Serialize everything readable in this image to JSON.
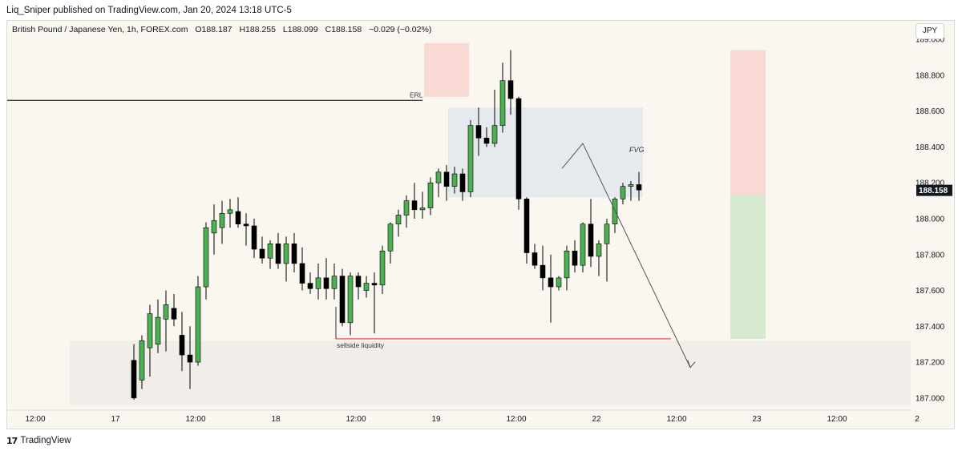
{
  "header": {
    "publisher_line": "Liq_Sniper published on TradingView.com, Jan 20, 2024 13:18 UTC-5"
  },
  "legend": {
    "symbol": "British Pound / Japanese Yen, 1h, FOREX.com",
    "open": "O188.187",
    "high": "H188.255",
    "low": "L188.099",
    "close": "C188.158",
    "change": "−0.029 (−0.02%)"
  },
  "currency_badge": "JPY",
  "footer": {
    "brand": "TradingView",
    "logo_glyph": "17"
  },
  "colors": {
    "bull": "#4caf50",
    "bear": "#000000",
    "background": "#faf7f0",
    "sellside_line": "#e53935",
    "erl_line": "#000000",
    "fvg_zone": "#e6eaef",
    "supply_zone": "#f8d9d4",
    "demand_zone": "#f1eee9",
    "target_zone": "#d6ead0"
  },
  "chart_data": {
    "type": "candlestick",
    "symbol": "GBPJPY",
    "timeframe": "1h",
    "y_axis": {
      "range": [
        186.95,
        189.05
      ],
      "ticks": [
        "189.000",
        "188.800",
        "188.600",
        "188.400",
        "188.200",
        "188.000",
        "187.800",
        "187.600",
        "187.400",
        "187.200",
        "187.000"
      ],
      "position": "right"
    },
    "x_axis": {
      "ticks": [
        "12:00",
        "17",
        "12:00",
        "18",
        "12:00",
        "19",
        "12:00",
        "22",
        "12:00",
        "23",
        "12:00",
        "2"
      ]
    },
    "last_price": "188.158",
    "candles": [
      [
        187.21,
        187.3,
        186.99,
        187.0
      ],
      [
        187.1,
        187.35,
        187.05,
        187.32
      ],
      [
        187.28,
        187.52,
        187.12,
        187.47
      ],
      [
        187.3,
        187.55,
        187.25,
        187.45
      ],
      [
        187.44,
        187.6,
        187.26,
        187.52
      ],
      [
        187.5,
        187.58,
        187.4,
        187.44
      ],
      [
        187.35,
        187.48,
        187.15,
        187.24
      ],
      [
        187.24,
        187.4,
        187.05,
        187.2
      ],
      [
        187.2,
        187.68,
        187.18,
        187.62
      ],
      [
        187.62,
        187.98,
        187.55,
        187.95
      ],
      [
        187.92,
        188.08,
        187.8,
        187.99
      ],
      [
        187.95,
        188.1,
        187.86,
        188.03
      ],
      [
        188.03,
        188.11,
        187.95,
        188.05
      ],
      [
        188.04,
        188.12,
        187.95,
        187.97
      ],
      [
        187.97,
        188.03,
        187.85,
        187.96
      ],
      [
        187.96,
        188.0,
        187.78,
        187.83
      ],
      [
        187.83,
        187.9,
        187.75,
        187.78
      ],
      [
        187.78,
        187.88,
        187.72,
        187.86
      ],
      [
        187.86,
        187.92,
        187.72,
        187.75
      ],
      [
        187.75,
        187.9,
        187.65,
        187.86
      ],
      [
        187.86,
        187.92,
        187.7,
        187.75
      ],
      [
        187.75,
        187.84,
        187.6,
        187.64
      ],
      [
        187.64,
        187.7,
        187.58,
        187.61
      ],
      [
        187.61,
        187.75,
        187.55,
        187.67
      ],
      [
        187.67,
        187.78,
        187.55,
        187.61
      ],
      [
        187.61,
        187.75,
        187.55,
        187.68
      ],
      [
        187.68,
        187.72,
        187.4,
        187.42
      ],
      [
        187.42,
        187.7,
        187.35,
        187.68
      ],
      [
        187.68,
        187.7,
        187.55,
        187.62
      ],
      [
        187.6,
        187.68,
        187.56,
        187.64
      ],
      [
        187.64,
        187.7,
        187.36,
        187.63
      ],
      [
        187.63,
        187.85,
        187.58,
        187.82
      ],
      [
        187.82,
        187.98,
        187.75,
        187.97
      ],
      [
        187.97,
        188.05,
        187.9,
        188.02
      ],
      [
        188.02,
        188.13,
        187.95,
        188.1
      ],
      [
        188.1,
        188.2,
        188.0,
        188.05
      ],
      [
        188.05,
        188.15,
        188.0,
        188.06
      ],
      [
        188.06,
        188.23,
        188.02,
        188.2
      ],
      [
        188.2,
        188.28,
        188.12,
        188.26
      ],
      [
        188.26,
        188.3,
        188.1,
        188.18
      ],
      [
        188.18,
        188.29,
        188.14,
        188.25
      ],
      [
        188.25,
        188.28,
        188.1,
        188.15
      ],
      [
        188.15,
        188.55,
        188.12,
        188.52
      ],
      [
        188.52,
        188.62,
        188.35,
        188.45
      ],
      [
        188.45,
        188.51,
        188.4,
        188.42
      ],
      [
        188.42,
        188.72,
        188.4,
        188.52
      ],
      [
        188.52,
        188.87,
        188.48,
        188.77
      ],
      [
        188.77,
        188.94,
        188.58,
        188.67
      ],
      [
        188.67,
        188.68,
        188.05,
        188.11
      ],
      [
        188.11,
        188.12,
        187.75,
        187.81
      ],
      [
        187.81,
        187.86,
        187.72,
        187.74
      ],
      [
        187.74,
        187.85,
        187.6,
        187.67
      ],
      [
        187.67,
        187.8,
        187.42,
        187.62
      ],
      [
        187.62,
        187.68,
        187.6,
        187.67
      ],
      [
        187.67,
        187.85,
        187.6,
        187.82
      ],
      [
        187.82,
        187.88,
        187.7,
        187.74
      ],
      [
        187.74,
        187.98,
        187.7,
        187.97
      ],
      [
        187.97,
        188.11,
        187.73,
        187.79
      ],
      [
        187.79,
        187.88,
        187.68,
        187.86
      ],
      [
        187.86,
        188.0,
        187.65,
        187.97
      ],
      [
        187.97,
        188.12,
        187.92,
        188.11
      ],
      [
        188.11,
        188.2,
        188.08,
        188.18
      ],
      [
        188.18,
        188.21,
        188.1,
        188.19
      ],
      [
        188.19,
        188.26,
        188.1,
        188.16
      ]
    ],
    "annotations": [
      {
        "text": "ERL",
        "type": "horizontal_line",
        "price": 188.66
      },
      {
        "text": "sellside liquidity",
        "type": "horizontal_line",
        "price": 187.33
      },
      {
        "text": "FVG",
        "type": "zone",
        "price_top": 188.62,
        "price_bottom": 188.12
      },
      {
        "type": "supply_zone",
        "price_top": 188.98,
        "price_bottom": 188.68
      },
      {
        "type": "demand_zone",
        "price_top": 187.32,
        "price_bottom": 186.96
      },
      {
        "type": "position_stop_zone",
        "price_top": 188.94,
        "price_bottom": 188.13
      },
      {
        "type": "position_target_zone",
        "price_top": 188.13,
        "price_bottom": 187.33
      },
      {
        "type": "projection_arrow",
        "path_prices": [
          188.28,
          188.42,
          187.17
        ]
      }
    ]
  }
}
